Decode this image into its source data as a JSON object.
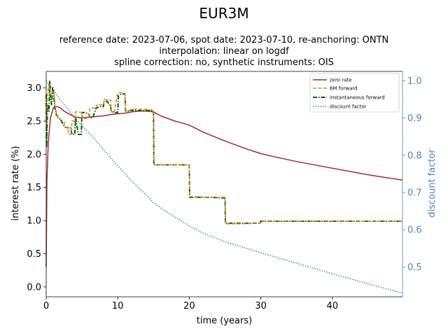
{
  "chart_data": {
    "type": "line",
    "title": "EUR3M",
    "subtitle_lines": [
      "reference date: 2023-07-06, spot date: 2023-07-10, re-anchoring: ONTN",
      "interpolation: linear on logdf",
      "spline correction: no, synthetic instruments: OIS"
    ],
    "xlabel": "time (years)",
    "ylabel": "interest rate (%)",
    "ylabel_right": "discount factor",
    "xlim": [
      0,
      49.8
    ],
    "ylim": [
      -0.15,
      3.25
    ],
    "ylim_right": [
      0.42,
      1.025
    ],
    "xticks": [
      0,
      10,
      20,
      30,
      40
    ],
    "xtick_labels": [
      "0",
      "10",
      "20",
      "30",
      "40"
    ],
    "yticks": [
      0.0,
      0.5,
      1.0,
      1.5,
      2.0,
      2.5,
      3.0
    ],
    "ytick_labels": [
      "0.0",
      "0.5",
      "1.0",
      "1.5",
      "2.0",
      "2.5",
      "3.0"
    ],
    "yticks_right": [
      0.5,
      0.6,
      0.7,
      0.8,
      0.9,
      1.0
    ],
    "ytick_labels_right": [
      "0.5",
      "0.6",
      "0.7",
      "0.8",
      "0.9",
      "1.0"
    ],
    "grid": false,
    "legend_position": "top-right",
    "colors": {
      "zero_rate": "#a52a2a",
      "forward_6m": "#e07b29",
      "instantaneous_forward": "#006400",
      "discount_factor": "#3a85b8",
      "right_axis": "#4a86b8"
    },
    "series": [
      {
        "name": "zero rate",
        "axis": "left",
        "style": "solid",
        "x": [
          0,
          0.1,
          0.3,
          0.6,
          1.0,
          1.5,
          2.0,
          2.5,
          3.0,
          4.0,
          5.0,
          6.0,
          7.0,
          8.0,
          9.0,
          10.0,
          11.0,
          12.0,
          13.0,
          14.0,
          15.0,
          16.0,
          18.0,
          20.0,
          22.0,
          25.0,
          28.0,
          30.0,
          32.0,
          35.0,
          40.0,
          45.0,
          49.8
        ],
        "y": [
          0.3,
          1.6,
          2.2,
          2.55,
          2.7,
          2.72,
          2.7,
          2.65,
          2.62,
          2.56,
          2.55,
          2.56,
          2.57,
          2.58,
          2.6,
          2.61,
          2.62,
          2.64,
          2.65,
          2.65,
          2.64,
          2.58,
          2.5,
          2.44,
          2.33,
          2.2,
          2.08,
          2.01,
          1.96,
          1.89,
          1.79,
          1.69,
          1.61
        ]
      },
      {
        "name": "6M forward",
        "axis": "left",
        "style": "dashed",
        "x": [
          0,
          0.1,
          0.2,
          0.35,
          0.5,
          0.7,
          0.9,
          1.1,
          1.3,
          1.6,
          2.0,
          2.5,
          2.6,
          3.0,
          3.1,
          3.5,
          3.6,
          4.0,
          4.1,
          4.5,
          5.0,
          5.1,
          5.5,
          6.0,
          6.1,
          6.5,
          7.0,
          7.1,
          7.5,
          8.0,
          8.1,
          8.5,
          9.0,
          9.1,
          9.5,
          10.0,
          10.1,
          10.5,
          11.0,
          11.1,
          11.5,
          12.0,
          12.1,
          12.5,
          13.0,
          13.5,
          14.0,
          14.5,
          15.0,
          15.1,
          16.0,
          18.0,
          20.0,
          20.1,
          21.0,
          23.0,
          25.0,
          25.1,
          27.0,
          30.0,
          30.1,
          35.0,
          40.0,
          45.0,
          49.8
        ],
        "y": [
          2.4,
          2.7,
          2.9,
          3.05,
          3.0,
          2.88,
          2.95,
          2.92,
          2.7,
          2.55,
          2.52,
          2.5,
          2.41,
          2.4,
          2.3,
          2.3,
          2.5,
          2.5,
          2.64,
          2.64,
          2.63,
          2.54,
          2.54,
          2.56,
          2.69,
          2.7,
          2.69,
          2.75,
          2.75,
          2.74,
          2.83,
          2.82,
          2.82,
          2.64,
          2.64,
          2.93,
          2.93,
          2.93,
          2.92,
          2.66,
          2.66,
          2.68,
          2.68,
          2.68,
          2.68,
          2.68,
          2.68,
          2.67,
          2.67,
          1.84,
          1.84,
          1.84,
          1.84,
          1.36,
          1.36,
          1.35,
          1.35,
          0.95,
          0.95,
          0.96,
          0.99,
          0.99,
          0.99,
          0.99,
          0.99
        ]
      },
      {
        "name": "instantaneous forward",
        "axis": "left",
        "style": "dashdot",
        "x": [
          0,
          0.05,
          0.2,
          0.4,
          0.5,
          0.6,
          0.75,
          0.9,
          1.0,
          1.2,
          1.4,
          1.6,
          2.0,
          2.4,
          2.6,
          3.0,
          3.4,
          3.6,
          4.0,
          4.1,
          4.5,
          4.9,
          5.0,
          5.5,
          6.0,
          6.1,
          6.5,
          7.0,
          7.1,
          7.5,
          8.0,
          8.1,
          8.5,
          9.0,
          9.1,
          9.5,
          10.0,
          10.1,
          10.5,
          11.0,
          11.1,
          11.5,
          12.0,
          12.1,
          12.5,
          13.0,
          13.5,
          14.0,
          14.5,
          15.0,
          15.05,
          16.0,
          18.0,
          20.0,
          20.05,
          21.0,
          23.0,
          25.0,
          25.05,
          27.0,
          29.8,
          29.9,
          30.0,
          35.0,
          40.0,
          45.0,
          49.8
        ],
        "y": [
          2.9,
          2.1,
          2.75,
          2.65,
          3.1,
          2.85,
          2.75,
          3.02,
          2.95,
          2.7,
          2.6,
          2.57,
          2.52,
          2.45,
          2.41,
          2.4,
          2.4,
          2.3,
          2.3,
          2.55,
          2.3,
          2.3,
          2.63,
          2.63,
          2.6,
          2.55,
          2.55,
          2.7,
          2.7,
          2.72,
          2.72,
          2.8,
          2.8,
          2.72,
          2.65,
          2.63,
          2.63,
          2.88,
          2.91,
          2.91,
          2.65,
          2.65,
          2.67,
          2.66,
          2.66,
          2.66,
          2.66,
          2.66,
          2.66,
          2.65,
          1.84,
          1.84,
          1.84,
          1.84,
          1.35,
          1.35,
          1.35,
          1.34,
          0.96,
          0.96,
          0.96,
          0.98,
          0.99,
          0.99,
          0.99,
          0.99,
          0.99
        ]
      },
      {
        "name": "discount factor",
        "axis": "right",
        "style": "dotted",
        "x": [
          0,
          1.0,
          2.0,
          3.0,
          4.0,
          5.0,
          6.0,
          8.0,
          10.0,
          12.0,
          14.0,
          15.0,
          17.0,
          20.0,
          22.0,
          25.0,
          28.0,
          30.0,
          35.0,
          40.0,
          45.0,
          49.8
        ],
        "y": [
          1.0,
          0.975,
          0.948,
          0.925,
          0.9,
          0.879,
          0.86,
          0.815,
          0.771,
          0.73,
          0.693,
          0.672,
          0.646,
          0.61,
          0.59,
          0.568,
          0.55,
          0.538,
          0.51,
          0.482,
          0.455,
          0.43
        ]
      }
    ]
  }
}
